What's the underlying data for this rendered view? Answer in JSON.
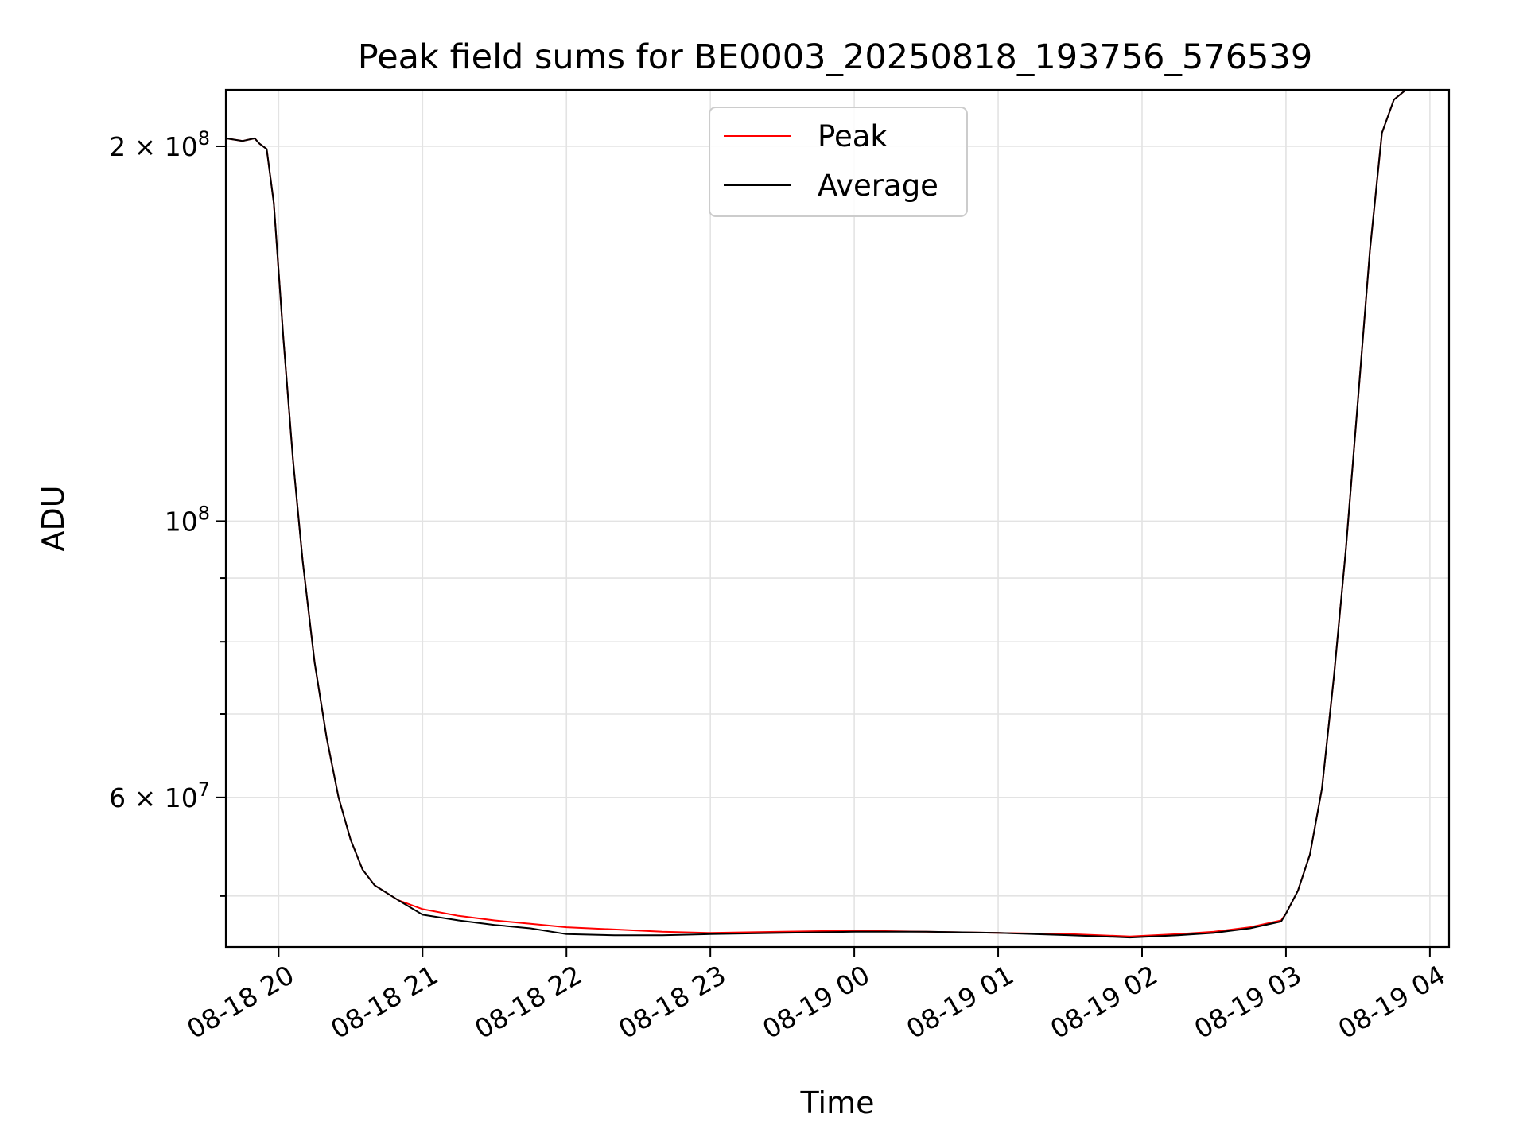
{
  "chart_data": {
    "type": "line",
    "title": "Peak field sums for BE0003_20250818_193756_576539",
    "xlabel": "Time",
    "ylabel": "ADU",
    "yscale": "log",
    "ylim": [
      45500000,
      222000000
    ],
    "xlim": [
      "2025-08-18 19:38",
      "2025-08-19 04:08"
    ],
    "grid": true,
    "legend_position": "top-center",
    "x_ticks": [
      {
        "value": "2025-08-18 20:00",
        "label": "08-18 20"
      },
      {
        "value": "2025-08-18 21:00",
        "label": "08-18 21"
      },
      {
        "value": "2025-08-18 22:00",
        "label": "08-18 22"
      },
      {
        "value": "2025-08-18 23:00",
        "label": "08-18 23"
      },
      {
        "value": "2025-08-19 00:00",
        "label": "08-19 00"
      },
      {
        "value": "2025-08-19 01:00",
        "label": "08-19 01"
      },
      {
        "value": "2025-08-19 02:00",
        "label": "08-19 02"
      },
      {
        "value": "2025-08-19 03:00",
        "label": "08-19 03"
      },
      {
        "value": "2025-08-19 04:00",
        "label": "08-19 04"
      }
    ],
    "y_major_ticks": [
      {
        "value": 200000000,
        "label_base": "2 × 10",
        "label_exp": "8"
      },
      {
        "value": 100000000,
        "label_base": "10",
        "label_exp": "8"
      },
      {
        "value": 60000000,
        "label_base": "6 × 10",
        "label_exp": "7"
      }
    ],
    "y_minor_ticks": [
      50000000,
      70000000,
      80000000,
      90000000
    ],
    "series": [
      {
        "name": "Peak",
        "color": "#ff0000",
        "points": [
          [
            "2025-08-18 19:38",
            203000000
          ],
          [
            "2025-08-18 19:45",
            202000000
          ],
          [
            "2025-08-18 19:50",
            203000000
          ],
          [
            "2025-08-18 19:52",
            201000000
          ],
          [
            "2025-08-18 19:55",
            199000000
          ],
          [
            "2025-08-18 19:58",
            180000000
          ],
          [
            "2025-08-18 20:02",
            140000000
          ],
          [
            "2025-08-18 20:06",
            112000000
          ],
          [
            "2025-08-18 20:10",
            93000000
          ],
          [
            "2025-08-18 20:15",
            77000000
          ],
          [
            "2025-08-18 20:20",
            67000000
          ],
          [
            "2025-08-18 20:25",
            60000000
          ],
          [
            "2025-08-18 20:30",
            55500000
          ],
          [
            "2025-08-18 20:35",
            52500000
          ],
          [
            "2025-08-18 20:40",
            51000000
          ],
          [
            "2025-08-18 20:50",
            49600000
          ],
          [
            "2025-08-18 21:00",
            48800000
          ],
          [
            "2025-08-18 21:15",
            48200000
          ],
          [
            "2025-08-18 21:30",
            47800000
          ],
          [
            "2025-08-18 21:45",
            47500000
          ],
          [
            "2025-08-18 22:00",
            47200000
          ],
          [
            "2025-08-18 22:20",
            47000000
          ],
          [
            "2025-08-18 22:40",
            46800000
          ],
          [
            "2025-08-18 23:00",
            46700000
          ],
          [
            "2025-08-18 23:30",
            46800000
          ],
          [
            "2025-08-19 00:00",
            46900000
          ],
          [
            "2025-08-19 00:30",
            46800000
          ],
          [
            "2025-08-19 01:00",
            46700000
          ],
          [
            "2025-08-19 01:30",
            46600000
          ],
          [
            "2025-08-19 01:55",
            46400000
          ],
          [
            "2025-08-19 02:15",
            46600000
          ],
          [
            "2025-08-19 02:30",
            46800000
          ],
          [
            "2025-08-19 02:45",
            47200000
          ],
          [
            "2025-08-19 02:58",
            47800000
          ],
          [
            "2025-08-19 03:00",
            48400000
          ],
          [
            "2025-08-19 03:05",
            50500000
          ],
          [
            "2025-08-19 03:10",
            54000000
          ],
          [
            "2025-08-19 03:15",
            61000000
          ],
          [
            "2025-08-19 03:20",
            75000000
          ],
          [
            "2025-08-19 03:25",
            95000000
          ],
          [
            "2025-08-19 03:30",
            125000000
          ],
          [
            "2025-08-19 03:35",
            165000000
          ],
          [
            "2025-08-19 03:40",
            205000000
          ],
          [
            "2025-08-19 03:45",
            218000000
          ],
          [
            "2025-08-19 03:50",
            222000000
          ],
          [
            "2025-08-19 04:00",
            222000000
          ]
        ]
      },
      {
        "name": "Average",
        "color": "#000000",
        "points": [
          [
            "2025-08-18 19:38",
            203000000
          ],
          [
            "2025-08-18 19:45",
            202000000
          ],
          [
            "2025-08-18 19:50",
            203000000
          ],
          [
            "2025-08-18 19:52",
            201000000
          ],
          [
            "2025-08-18 19:55",
            199000000
          ],
          [
            "2025-08-18 19:58",
            180000000
          ],
          [
            "2025-08-18 20:02",
            140000000
          ],
          [
            "2025-08-18 20:06",
            112000000
          ],
          [
            "2025-08-18 20:10",
            93000000
          ],
          [
            "2025-08-18 20:15",
            77000000
          ],
          [
            "2025-08-18 20:20",
            67000000
          ],
          [
            "2025-08-18 20:25",
            60000000
          ],
          [
            "2025-08-18 20:30",
            55500000
          ],
          [
            "2025-08-18 20:35",
            52500000
          ],
          [
            "2025-08-18 20:40",
            51000000
          ],
          [
            "2025-08-18 20:50",
            49600000
          ],
          [
            "2025-08-18 21:00",
            48300000
          ],
          [
            "2025-08-18 21:15",
            47800000
          ],
          [
            "2025-08-18 21:30",
            47400000
          ],
          [
            "2025-08-18 21:45",
            47100000
          ],
          [
            "2025-08-18 22:00",
            46600000
          ],
          [
            "2025-08-18 22:20",
            46500000
          ],
          [
            "2025-08-18 22:40",
            46500000
          ],
          [
            "2025-08-18 23:00",
            46600000
          ],
          [
            "2025-08-18 23:30",
            46700000
          ],
          [
            "2025-08-19 00:00",
            46800000
          ],
          [
            "2025-08-19 00:30",
            46800000
          ],
          [
            "2025-08-19 01:00",
            46700000
          ],
          [
            "2025-08-19 01:30",
            46500000
          ],
          [
            "2025-08-19 01:55",
            46300000
          ],
          [
            "2025-08-19 02:15",
            46500000
          ],
          [
            "2025-08-19 02:30",
            46700000
          ],
          [
            "2025-08-19 02:45",
            47100000
          ],
          [
            "2025-08-19 02:58",
            47700000
          ],
          [
            "2025-08-19 03:00",
            48400000
          ],
          [
            "2025-08-19 03:05",
            50500000
          ],
          [
            "2025-08-19 03:10",
            54000000
          ],
          [
            "2025-08-19 03:15",
            61000000
          ],
          [
            "2025-08-19 03:20",
            75000000
          ],
          [
            "2025-08-19 03:25",
            95000000
          ],
          [
            "2025-08-19 03:30",
            125000000
          ],
          [
            "2025-08-19 03:35",
            165000000
          ],
          [
            "2025-08-19 03:40",
            205000000
          ],
          [
            "2025-08-19 03:45",
            218000000
          ],
          [
            "2025-08-19 03:50",
            222000000
          ],
          [
            "2025-08-19 04:00",
            222000000
          ]
        ]
      }
    ]
  }
}
